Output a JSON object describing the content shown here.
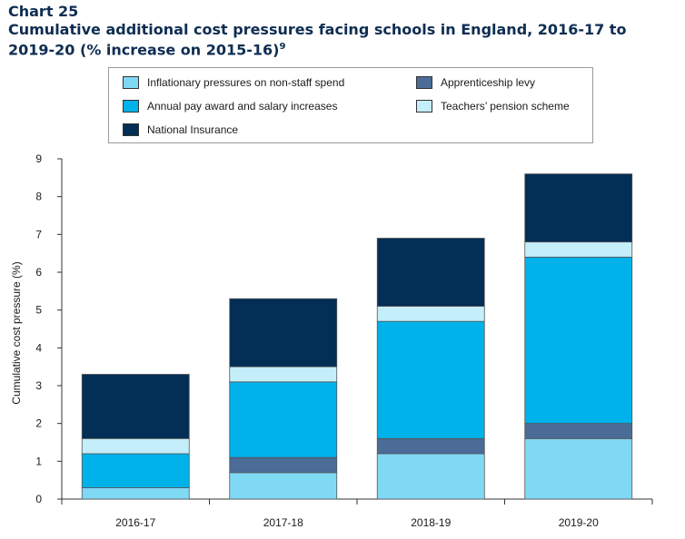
{
  "chart_number": "Chart 25",
  "title": "Cumulative additional cost pressures facing schools in England, 2016-17 to 2019-20 (% increase on 2015-16)",
  "title_footnote": "9",
  "chart_data": {
    "type": "bar",
    "stacked": true,
    "categories": [
      "2016-17",
      "2017-18",
      "2018-19",
      "2019-20"
    ],
    "series": [
      {
        "name": "Inflationary pressures on non-staff spend",
        "color": "#7fd9f5",
        "values": [
          0.3,
          0.7,
          1.2,
          1.6
        ]
      },
      {
        "name": "Apprenticeship levy",
        "color": "#4b6c97",
        "values": [
          0.0,
          0.4,
          0.4,
          0.4
        ]
      },
      {
        "name": "Annual pay award and salary increases",
        "color": "#00b2ea",
        "values": [
          0.9,
          2.0,
          3.1,
          4.4
        ]
      },
      {
        "name": "Teachers' pension scheme",
        "color": "#c5eefb",
        "values": [
          0.4,
          0.4,
          0.4,
          0.4
        ]
      },
      {
        "name": "National Insurance",
        "color": "#032e55",
        "values": [
          1.7,
          1.8,
          1.8,
          1.8
        ]
      }
    ],
    "legend_order": [
      "Inflationary pressures on non-staff spend",
      "Apprenticeship levy",
      "Annual pay award and salary increases",
      "Teachers' pension scheme",
      "National Insurance"
    ],
    "legend_labels": {
      "Inflationary pressures on non-staff spend": "Inflationary pressures on non-staff spend",
      "Apprenticeship levy": "Apprenticeship levy",
      "Annual pay award and salary increases": "Annual pay award and salary increases",
      "Teachers' pension scheme": "Teachers’ pension scheme",
      "National Insurance": "National Insurance"
    },
    "ylabel": "Cumulative cost pressure (%)",
    "xlabel": "",
    "ylim": [
      0,
      9
    ],
    "yticks": [
      0,
      1,
      2,
      3,
      4,
      5,
      6,
      7,
      8,
      9
    ],
    "grid": false,
    "legend_position": "top"
  }
}
